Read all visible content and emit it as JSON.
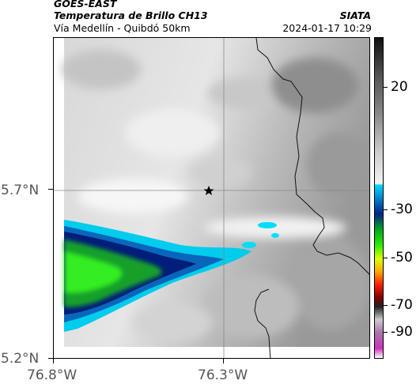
{
  "header": {
    "satellite": "GOES-EAST",
    "product": "Temperatura de Brillo CH13",
    "region": "Vía Medellín - Quibdó 50km",
    "org": "SIATA",
    "timestamp": "2024-01-17 10:29"
  },
  "axes": {
    "lat_labels": [
      "5.7°N",
      "5.2°N"
    ],
    "lon_labels": [
      "76.8°W",
      "76.3°W"
    ]
  },
  "colorbar": {
    "tick_labels": [
      "20",
      "-30",
      "-50",
      "-70",
      "-90"
    ]
  },
  "map": {
    "marker_icon": "star-icon",
    "grid_color": "#888888",
    "border_color": "#111111"
  }
}
